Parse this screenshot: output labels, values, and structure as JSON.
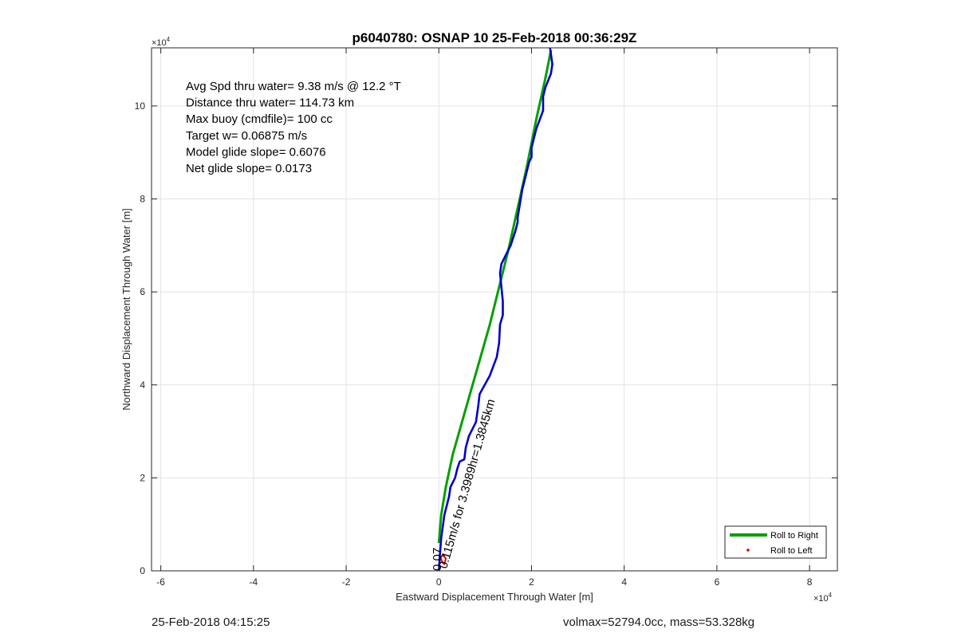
{
  "chart_data": {
    "type": "line",
    "title": "p6040780: OSNAP 10 25-Feb-2018 00:36:29Z",
    "xlabel": "Eastward Displacement Through Water [m]",
    "ylabel": "Northward Displacement Through Water [m]",
    "x_exponent_label": "×10",
    "y_exponent_label": "×10",
    "exponent": "4",
    "xlim": [
      -6.2,
      8.6
    ],
    "ylim": [
      0,
      11.25
    ],
    "xticks": [
      -6,
      -4,
      -2,
      0,
      2,
      4,
      6,
      8
    ],
    "xtick_labels": [
      "-6",
      "-4",
      "-2",
      "0",
      "2",
      "4",
      "6",
      "8"
    ],
    "yticks": [
      0,
      2,
      4,
      6,
      8,
      10
    ],
    "ytick_labels": [
      "0",
      "2",
      "4",
      "6",
      "8",
      "10"
    ],
    "grid": true,
    "legend_position": "bottom-right",
    "series": [
      {
        "name": "Roll to Right",
        "color": "#00a000",
        "x": [
          0.0,
          0.05,
          0.15,
          0.3,
          0.5,
          0.7,
          0.9,
          1.1,
          1.3,
          1.5,
          1.7,
          1.9,
          2.1,
          2.3,
          2.42
        ],
        "y": [
          0.6,
          1.2,
          1.8,
          2.5,
          3.2,
          3.9,
          4.6,
          5.3,
          6.1,
          6.9,
          7.8,
          8.7,
          9.7,
          10.6,
          11.2
        ]
      },
      {
        "name": "",
        "color": "#0000c8",
        "x": [
          0.0,
          0.02,
          0.05,
          0.12,
          0.22,
          0.25,
          0.35,
          0.4,
          0.45,
          0.55,
          0.58,
          0.65,
          0.8,
          0.85,
          0.88,
          1.1,
          1.25,
          1.3,
          1.32,
          1.38,
          1.38,
          1.32,
          1.35,
          1.55,
          1.65,
          1.7,
          1.7,
          1.8,
          1.95,
          2.0,
          2.0,
          2.1,
          2.25,
          2.25,
          2.3,
          2.42,
          2.45,
          2.4
        ],
        "y": [
          0.0,
          0.3,
          0.7,
          1.2,
          1.6,
          1.8,
          2.0,
          2.2,
          2.35,
          2.4,
          2.65,
          2.9,
          3.2,
          3.55,
          3.8,
          4.2,
          4.6,
          4.9,
          5.3,
          5.5,
          5.8,
          6.4,
          6.6,
          7.0,
          7.3,
          7.5,
          7.6,
          8.2,
          8.8,
          8.9,
          9.1,
          9.5,
          9.9,
          10.2,
          10.4,
          10.7,
          10.9,
          11.25
        ]
      }
    ],
    "roll_to_left_marker": {
      "name": "Roll to Left",
      "color": "#dd0000",
      "x": [
        0.07,
        0.04,
        0.09,
        0.15,
        0.12,
        0.06
      ],
      "y": [
        0.2,
        0.28,
        0.36,
        0.26,
        0.14,
        0.2
      ]
    },
    "annotations": {
      "stats": [
        "Avg Spd thru water=  9.38 m/s @  12.2 °T",
        "Distance thru water= 114.73 km",
        "Max buoy (cmdfile)= 100 cc",
        "Target w= 0.06875 m/s",
        "Model glide slope= 0.6076",
        "Net glide slope= 0.0173"
      ],
      "rotated_a": "0.115m/s for 3.3989hr=1.3845km",
      "rotated_b": "0.07"
    }
  },
  "footer": {
    "left": "25-Feb-2018 04:15:25",
    "right": "volmax=52794.0cc, mass=53.328kg"
  }
}
